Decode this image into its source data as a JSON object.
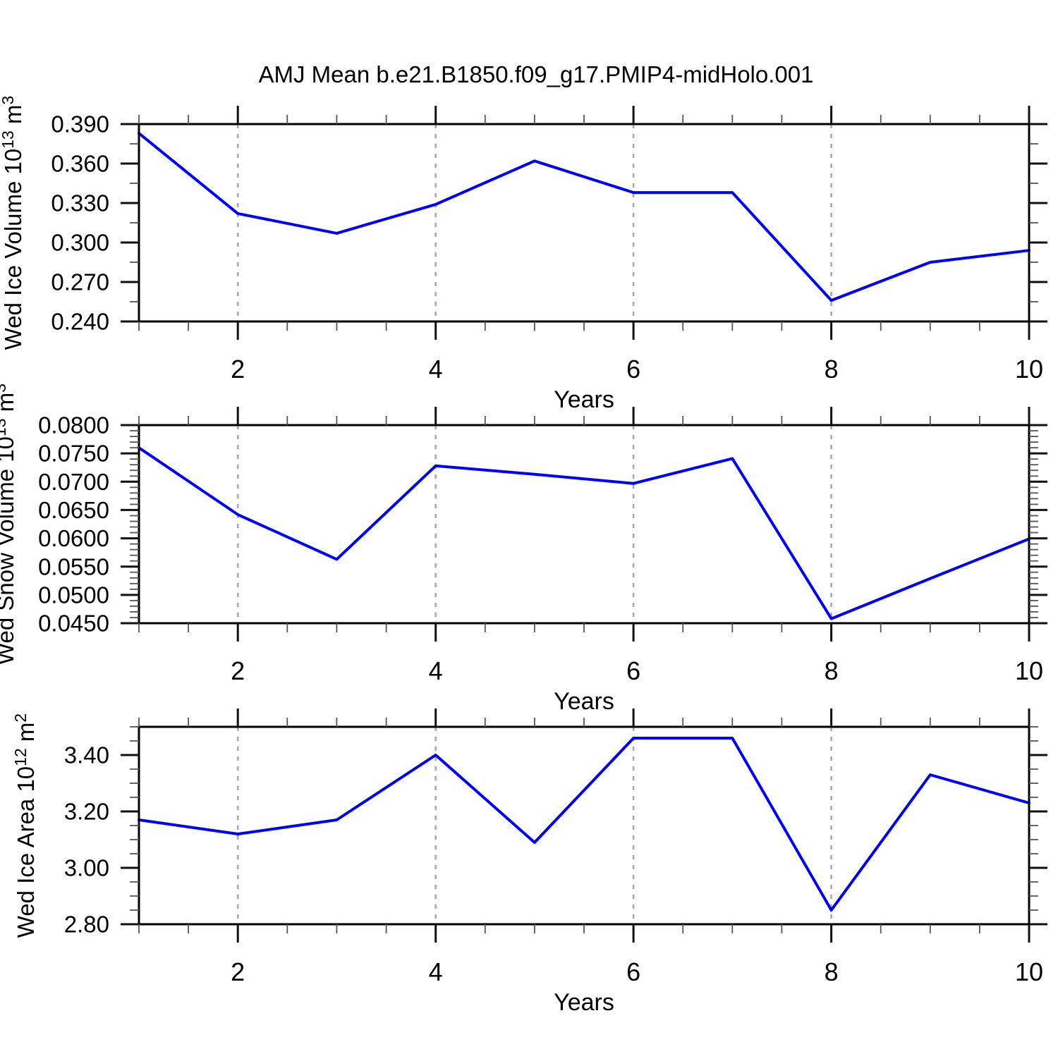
{
  "title": "AMJ Mean b.e21.B1850.f09_g17.PMIP4-midHolo.001",
  "colors": {
    "line": "#0000ff",
    "grid": "#a9a9a9",
    "axis": "#000000",
    "minor_tick": "#555555",
    "background": "#ffffff"
  },
  "xaxis": {
    "label": "Years",
    "range": [
      1,
      10
    ],
    "major_ticks": [
      {
        "v": 2,
        "label": "2"
      },
      {
        "v": 4,
        "label": "4"
      },
      {
        "v": 6,
        "label": "6"
      },
      {
        "v": 8,
        "label": "8"
      },
      {
        "v": 10,
        "label": "10"
      }
    ],
    "minor_step": 0.5,
    "gridline_years": [
      2,
      4,
      6,
      8
    ]
  },
  "chart_data": [
    {
      "id": "wed-ice-volume",
      "type": "line",
      "ylabel": "Wed Ice Volume 10^13 m^3",
      "ylabel_parts": [
        {
          "t": "Wed Ice Volume 10"
        },
        {
          "t": "13",
          "sup": true
        },
        {
          "t": " m"
        },
        {
          "t": "3",
          "sup": true
        }
      ],
      "xlabel": "Years",
      "x": [
        1,
        2,
        3,
        4,
        5,
        6,
        7,
        8,
        9,
        10
      ],
      "values": [
        0.383,
        0.322,
        0.307,
        0.329,
        0.362,
        0.338,
        0.338,
        0.256,
        0.285,
        0.294
      ],
      "ylim": [
        0.24,
        0.39
      ],
      "ytick_values": [
        0.39,
        0.36,
        0.33,
        0.3,
        0.27,
        0.24
      ],
      "ytick_labels": [
        "0.390",
        "0.360",
        "0.330",
        "0.300",
        "0.270",
        "0.240"
      ],
      "yminor_step": 0.015,
      "grid": "vertical-dashed",
      "legend": "none"
    },
    {
      "id": "wed-snow-volume",
      "type": "line",
      "ylabel": "Wed Snow Volume 10^13 m^3",
      "ylabel_parts": [
        {
          "t": "Wed Snow Volume 10"
        },
        {
          "t": "13",
          "sup": true
        },
        {
          "t": " m"
        },
        {
          "t": "3",
          "sup": true
        }
      ],
      "xlabel": "Years",
      "x": [
        1,
        2,
        3,
        4,
        5,
        6,
        7,
        8,
        9,
        10
      ],
      "values": [
        0.076,
        0.0642,
        0.0563,
        0.0728,
        0.0713,
        0.0697,
        0.0741,
        0.0458,
        0.0529,
        0.0599
      ],
      "ylim": [
        0.045,
        0.08
      ],
      "ytick_values": [
        0.08,
        0.075,
        0.07,
        0.065,
        0.06,
        0.055,
        0.05,
        0.045
      ],
      "ytick_labels": [
        "0.0800",
        "0.0750",
        "0.0700",
        "0.0650",
        "0.0600",
        "0.0550",
        "0.0500",
        "0.0450"
      ],
      "yminor_step": 0.001,
      "grid": "vertical-dashed",
      "legend": "none"
    },
    {
      "id": "wed-ice-area",
      "type": "line",
      "ylabel": "Wed Ice Area 10^12 m^2",
      "ylabel_parts": [
        {
          "t": "Wed Ice Area 10"
        },
        {
          "t": "12",
          "sup": true
        },
        {
          "t": " m"
        },
        {
          "t": "2",
          "sup": true
        }
      ],
      "xlabel": "Years",
      "x": [
        1,
        2,
        3,
        4,
        5,
        6,
        7,
        8,
        9,
        10
      ],
      "values": [
        3.17,
        3.12,
        3.17,
        3.4,
        3.09,
        3.46,
        3.46,
        2.85,
        3.33,
        3.23
      ],
      "ylim": [
        2.8,
        3.5
      ],
      "ytick_values": [
        3.4,
        3.2,
        3.0,
        2.8
      ],
      "ytick_labels": [
        "3.40",
        "3.20",
        "3.00",
        "2.80"
      ],
      "yminor_step": 0.05,
      "grid": "vertical-dashed",
      "legend": "none"
    }
  ]
}
